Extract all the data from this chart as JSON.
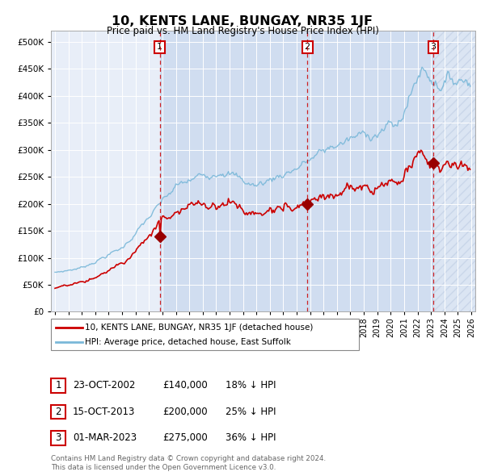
{
  "title": "10, KENTS LANE, BUNGAY, NR35 1JF",
  "subtitle": "Price paid vs. HM Land Registry's House Price Index (HPI)",
  "legend_line1": "10, KENTS LANE, BUNGAY, NR35 1JF (detached house)",
  "legend_line2": "HPI: Average price, detached house, East Suffolk",
  "footer1": "Contains HM Land Registry data © Crown copyright and database right 2024.",
  "footer2": "This data is licensed under the Open Government Licence v3.0.",
  "sales": [
    {
      "label": "1",
      "date": "23-OCT-2002",
      "price": 140000,
      "hpi_pct": "18% ↓ HPI",
      "x_year": 2002.81
    },
    {
      "label": "2",
      "date": "15-OCT-2013",
      "price": 200000,
      "hpi_pct": "25% ↓ HPI",
      "x_year": 2013.79
    },
    {
      "label": "3",
      "date": "01-MAR-2023",
      "price": 275000,
      "hpi_pct": "36% ↓ HPI",
      "x_year": 2023.17
    }
  ],
  "ylim": [
    0,
    520000
  ],
  "xlim_left": 1994.7,
  "xlim_right": 2026.3,
  "hpi_color": "#7ab8d9",
  "price_color": "#cc0000",
  "dashed_line_color": "#cc0000",
  "marker_color": "#990000",
  "box_color": "#cc0000",
  "plot_bg": "#e8eef8",
  "band_color": "#d0ddf0",
  "hatch_color": "#c8d5e8"
}
